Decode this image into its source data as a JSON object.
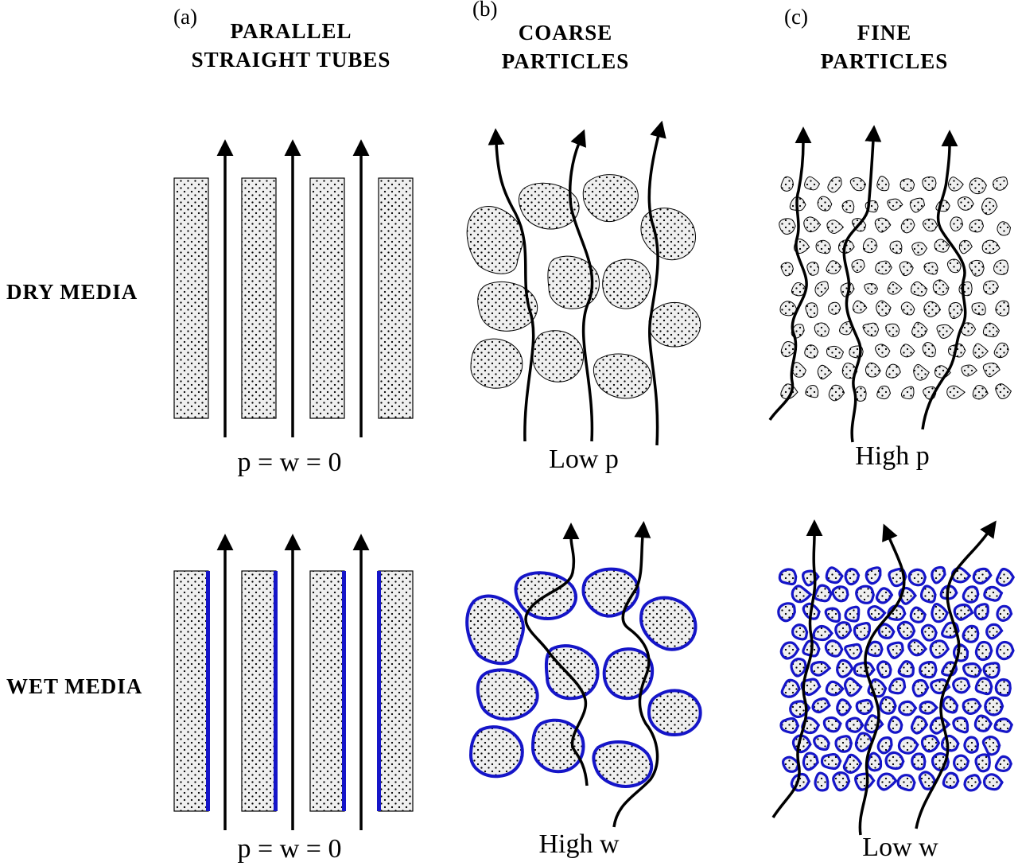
{
  "panels": [
    {
      "letter": "(a)",
      "title_line1": "PARALLEL",
      "title_line2": "STRAIGHT TUBES"
    },
    {
      "letter": "(b)",
      "title_line1": "COARSE",
      "title_line2": "PARTICLES"
    },
    {
      "letter": "(c)",
      "title_line1": "FINE",
      "title_line2": "PARTICLES"
    }
  ],
  "rows": [
    {
      "label": "DRY MEDIA"
    },
    {
      "label": "WET MEDIA"
    }
  ],
  "captions": {
    "dry": [
      "p = w = 0",
      "Low p",
      "High p"
    ],
    "wet": [
      "p = w = 0",
      "High w",
      "Low w"
    ]
  },
  "colors": {
    "ink": "#000000",
    "grain_fill": "#efefef",
    "water_film": "#1515c8"
  }
}
